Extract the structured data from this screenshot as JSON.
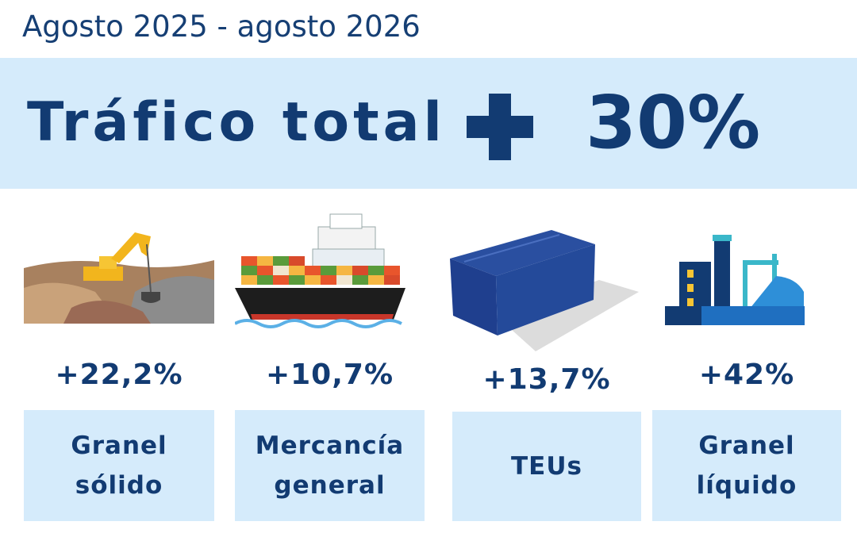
{
  "header": {
    "subtitle": "Agosto 2025 - agosto 2026"
  },
  "banner": {
    "label": "Tráfico total",
    "value": "30%"
  },
  "items": [
    {
      "change": "+22,2%",
      "label": "Granel sólido"
    },
    {
      "change": "+10,7%",
      "label": "Mercancía general"
    },
    {
      "change": "+13,7%",
      "label": "TEUs"
    },
    {
      "change": "+42%",
      "label": "Granel líquido"
    }
  ]
}
